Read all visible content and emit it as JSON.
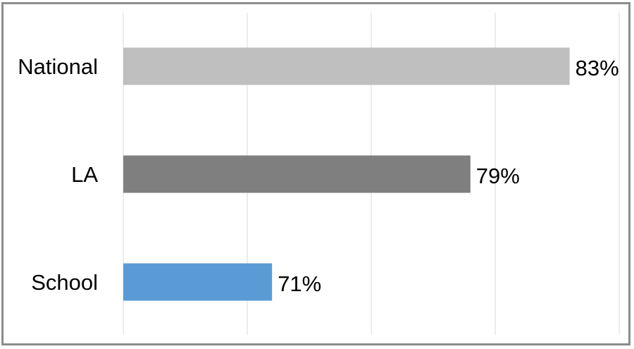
{
  "chart_data": {
    "type": "bar",
    "orientation": "horizontal",
    "title": "",
    "xlabel": "",
    "ylabel": "",
    "categories": [
      "National",
      "LA",
      "School"
    ],
    "values": [
      83,
      79,
      71
    ],
    "value_labels": [
      "83%",
      "79%",
      "71%"
    ],
    "colors": [
      "#bfbfbf",
      "#7f7f7f",
      "#5b9bd5"
    ],
    "xlim": [
      65,
      85
    ],
    "x_gridlines": [
      65,
      70,
      75,
      80,
      85
    ],
    "grid": true,
    "legend": "none",
    "axis_tick_labels_visible": false
  }
}
